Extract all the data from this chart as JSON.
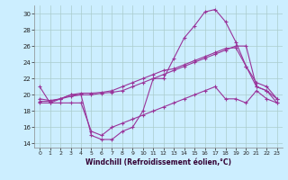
{
  "xlabel": "Windchill (Refroidissement éolien,°C)",
  "bg_color": "#cceeff",
  "grid_color": "#aacccc",
  "line_color": "#993399",
  "xlim": [
    -0.5,
    23.5
  ],
  "ylim": [
    13.5,
    31.0
  ],
  "yticks": [
    14,
    16,
    18,
    20,
    22,
    24,
    26,
    28,
    30
  ],
  "xticks": [
    0,
    1,
    2,
    3,
    4,
    5,
    6,
    7,
    8,
    9,
    10,
    11,
    12,
    13,
    14,
    15,
    16,
    17,
    18,
    19,
    20,
    21,
    22,
    23
  ],
  "series": [
    {
      "x": [
        0,
        1,
        2,
        3,
        4,
        5,
        6,
        7,
        8,
        9,
        10,
        11,
        12,
        13,
        14,
        15,
        16,
        17,
        18,
        19,
        20,
        21,
        22,
        23
      ],
      "y": [
        21.0,
        19.0,
        19.5,
        20.0,
        20.0,
        15.0,
        14.5,
        14.5,
        15.5,
        16.0,
        18.0,
        22.0,
        22.0,
        24.5,
        27.0,
        28.5,
        30.2,
        30.5,
        29.0,
        26.5,
        23.5,
        21.0,
        20.5,
        19.0
      ]
    },
    {
      "x": [
        0,
        1,
        2,
        3,
        4,
        5,
        6,
        7,
        8,
        9,
        10,
        11,
        12,
        13,
        14,
        15,
        16,
        17,
        18,
        19,
        20,
        21,
        22,
        23
      ],
      "y": [
        19.2,
        19.2,
        19.5,
        19.8,
        20.0,
        20.0,
        20.2,
        20.3,
        20.5,
        21.0,
        21.5,
        22.0,
        22.5,
        23.0,
        23.5,
        24.0,
        24.5,
        25.0,
        25.5,
        26.0,
        26.0,
        21.0,
        20.5,
        19.5
      ]
    },
    {
      "x": [
        0,
        1,
        2,
        3,
        4,
        5,
        6,
        7,
        8,
        9,
        10,
        11,
        12,
        13,
        14,
        15,
        16,
        17,
        18,
        19,
        20,
        21,
        22,
        23
      ],
      "y": [
        19.5,
        19.3,
        19.5,
        20.0,
        20.2,
        20.2,
        20.3,
        20.5,
        21.0,
        21.5,
        22.0,
        22.5,
        23.0,
        23.2,
        23.7,
        24.2,
        24.7,
        25.2,
        25.7,
        25.8,
        23.5,
        21.5,
        21.0,
        19.5
      ]
    },
    {
      "x": [
        0,
        1,
        2,
        3,
        4,
        5,
        6,
        7,
        8,
        9,
        10,
        11,
        12,
        13,
        14,
        15,
        16,
        17,
        18,
        19,
        20,
        21,
        22,
        23
      ],
      "y": [
        19.0,
        19.0,
        19.0,
        19.0,
        19.0,
        15.5,
        15.0,
        16.0,
        16.5,
        17.0,
        17.5,
        18.0,
        18.5,
        19.0,
        19.5,
        20.0,
        20.5,
        21.0,
        19.5,
        19.5,
        19.0,
        20.5,
        19.5,
        19.0
      ]
    }
  ]
}
